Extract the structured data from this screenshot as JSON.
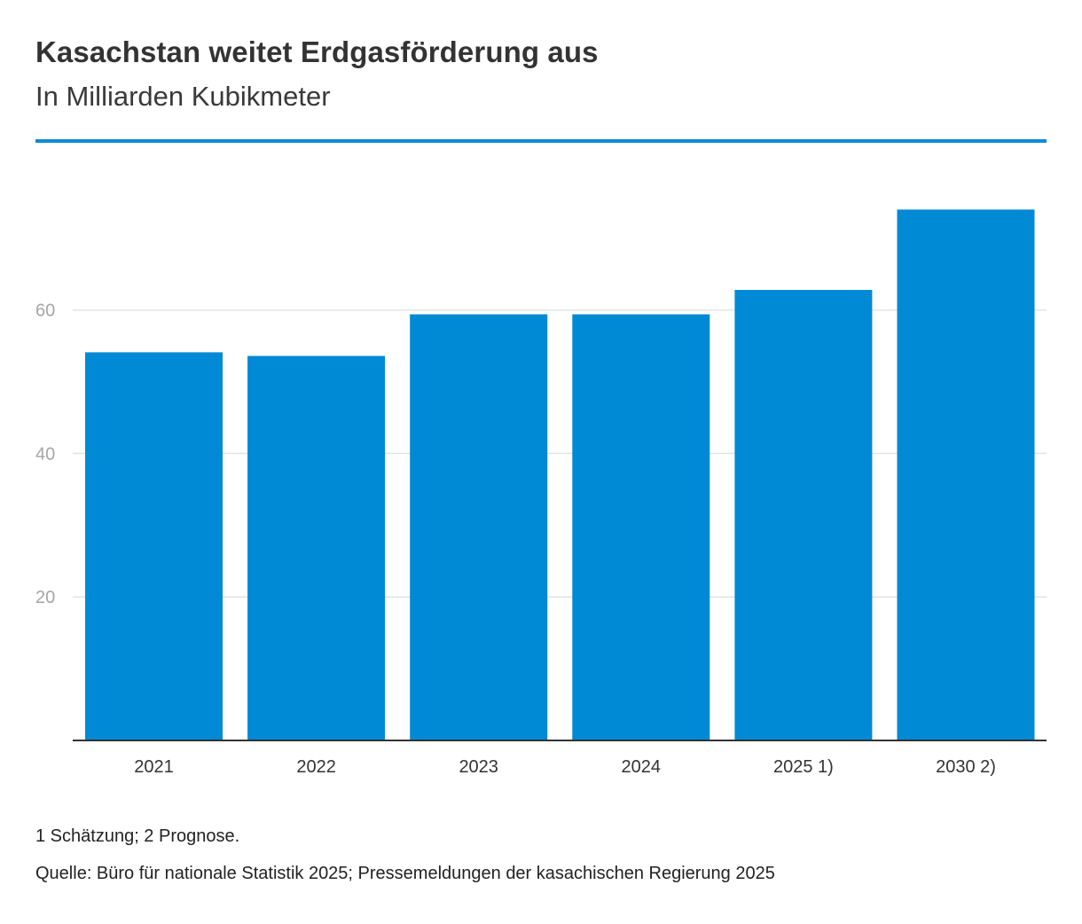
{
  "header": {
    "title": "Kasachstan weitet Erdgasförderung aus",
    "subtitle": "In Milliarden Kubikmeter"
  },
  "colors": {
    "bar": "#0089d4",
    "rule": "#0a8bd6",
    "grid": "#e3e3e3",
    "axis": "#333333",
    "y_tick_text": "#a6a6a6",
    "x_tick_text": "#333333"
  },
  "chart_data": {
    "type": "bar",
    "title": "Kasachstan weitet Erdgasförderung aus",
    "subtitle": "In Milliarden Kubikmeter",
    "categories": [
      "2021",
      "2022",
      "2023",
      "2024",
      "2025 1)",
      "2030 2)"
    ],
    "values": [
      54.1,
      53.6,
      59.4,
      59.4,
      62.8,
      74.0
    ],
    "xlabel": "",
    "ylabel": "",
    "ylim": [
      0,
      75
    ],
    "yticks": [
      20,
      40,
      60
    ],
    "grid": true,
    "legend": "none"
  },
  "footer": {
    "footnote": "1 Schätzung; 2 Prognose.",
    "source": "Quelle: Büro für nationale Statistik 2025; Pressemeldungen der kasachischen Regierung 2025"
  }
}
